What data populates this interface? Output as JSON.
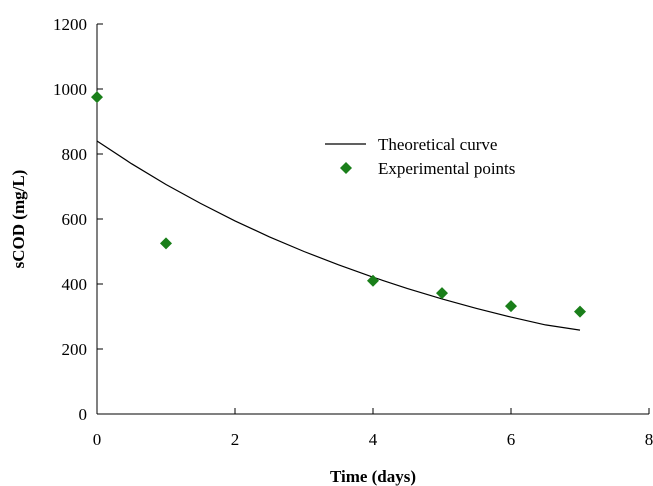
{
  "chart_data": {
    "type": "scatter",
    "xlabel": "Time (days)",
    "ylabel": "sCOD (mg/L)",
    "xlim": [
      0,
      8
    ],
    "ylim": [
      0,
      1200
    ],
    "xticks": [
      "0",
      "2",
      "4",
      "6",
      "8"
    ],
    "yticks": [
      "0",
      "200",
      "400",
      "600",
      "800",
      "1000",
      "1200"
    ],
    "grid": false,
    "legend_position": "upper-right",
    "series": [
      {
        "name": "Theoretical curve",
        "kind": "line",
        "color": "#000000",
        "x": [
          0,
          0.5,
          1,
          1.5,
          2,
          2.5,
          3,
          3.5,
          4,
          4.5,
          5,
          5.5,
          6,
          6.5,
          7
        ],
        "y": [
          840,
          770,
          706,
          648,
          594,
          545,
          500,
          459,
          421,
          386,
          354,
          325,
          298,
          274,
          258
        ]
      },
      {
        "name": "Experimental points",
        "kind": "scatter",
        "marker": "diamond",
        "color": "#1a7f1a",
        "x": [
          0,
          1,
          4,
          5,
          6,
          7
        ],
        "y": [
          975,
          525,
          410,
          372,
          332,
          315
        ]
      }
    ]
  }
}
